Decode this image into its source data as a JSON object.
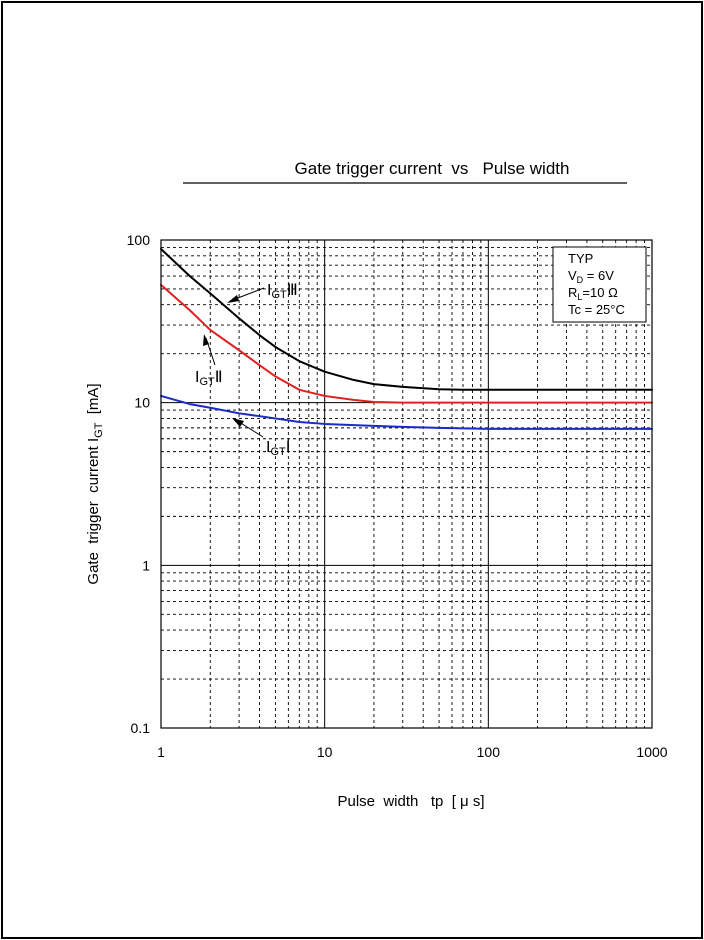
{
  "chart_data": {
    "type": "line",
    "title": "Gate trigger current  vs   Pulse width",
    "xlabel": "Pulse  width   tp  [ μ s]",
    "ylabel_main": "Gate  trigger  current I",
    "ylabel_sub": "GT",
    "ylabel_unit": "  [mA]",
    "xscale": "log",
    "yscale": "log",
    "xlim": [
      1,
      1000
    ],
    "ylim": [
      0.1,
      100
    ],
    "grid": true,
    "x_tick_labels": [
      "1",
      "10",
      "100",
      "1000"
    ],
    "y_tick_labels": [
      "0.1",
      "1",
      "10",
      "100"
    ],
    "legend_box": {
      "placement": "top-right",
      "lines": [
        {
          "main": "TYP",
          "sub": "",
          "rest": ""
        },
        {
          "main": "V",
          "sub": "D",
          "rest": " = 6V"
        },
        {
          "main": "R",
          "sub": "L",
          "rest": "=10 Ω"
        },
        {
          "main": "Tc = 25°C",
          "sub": "",
          "rest": ""
        }
      ]
    },
    "series": [
      {
        "label_main": "I",
        "label_sub": "GT",
        "label_roman": "Ⅲ",
        "color": "#000000",
        "points": [
          [
            1,
            88
          ],
          [
            1.5,
            60
          ],
          [
            2,
            47
          ],
          [
            3,
            33
          ],
          [
            4,
            26
          ],
          [
            5,
            22
          ],
          [
            7,
            18
          ],
          [
            10,
            15.5
          ],
          [
            15,
            13.8
          ],
          [
            20,
            13
          ],
          [
            30,
            12.5
          ],
          [
            50,
            12.1
          ],
          [
            70,
            12
          ],
          [
            100,
            12
          ],
          [
            200,
            12
          ],
          [
            500,
            12
          ],
          [
            1000,
            12
          ]
        ]
      },
      {
        "label_main": "I",
        "label_sub": "GT",
        "label_roman": "Ⅱ",
        "color": "#e02020",
        "points": [
          [
            1,
            53
          ],
          [
            1.5,
            37
          ],
          [
            2,
            28
          ],
          [
            3,
            21
          ],
          [
            4,
            17
          ],
          [
            5,
            14.5
          ],
          [
            7,
            12
          ],
          [
            10,
            11
          ],
          [
            15,
            10.4
          ],
          [
            20,
            10.1
          ],
          [
            30,
            10
          ],
          [
            50,
            10
          ],
          [
            100,
            10
          ],
          [
            200,
            10
          ],
          [
            500,
            10
          ],
          [
            1000,
            10
          ]
        ]
      },
      {
        "label_main": "I",
        "label_sub": "GT",
        "label_roman": "Ⅰ",
        "color": "#1a2bc8",
        "points": [
          [
            1,
            11
          ],
          [
            1.5,
            9.8
          ],
          [
            2,
            9.3
          ],
          [
            3,
            8.6
          ],
          [
            5,
            8
          ],
          [
            7,
            7.6
          ],
          [
            10,
            7.4
          ],
          [
            20,
            7.2
          ],
          [
            30,
            7.1
          ],
          [
            50,
            7
          ],
          [
            100,
            6.9
          ],
          [
            200,
            6.9
          ],
          [
            500,
            6.9
          ],
          [
            1000,
            6.9
          ]
        ]
      }
    ]
  }
}
